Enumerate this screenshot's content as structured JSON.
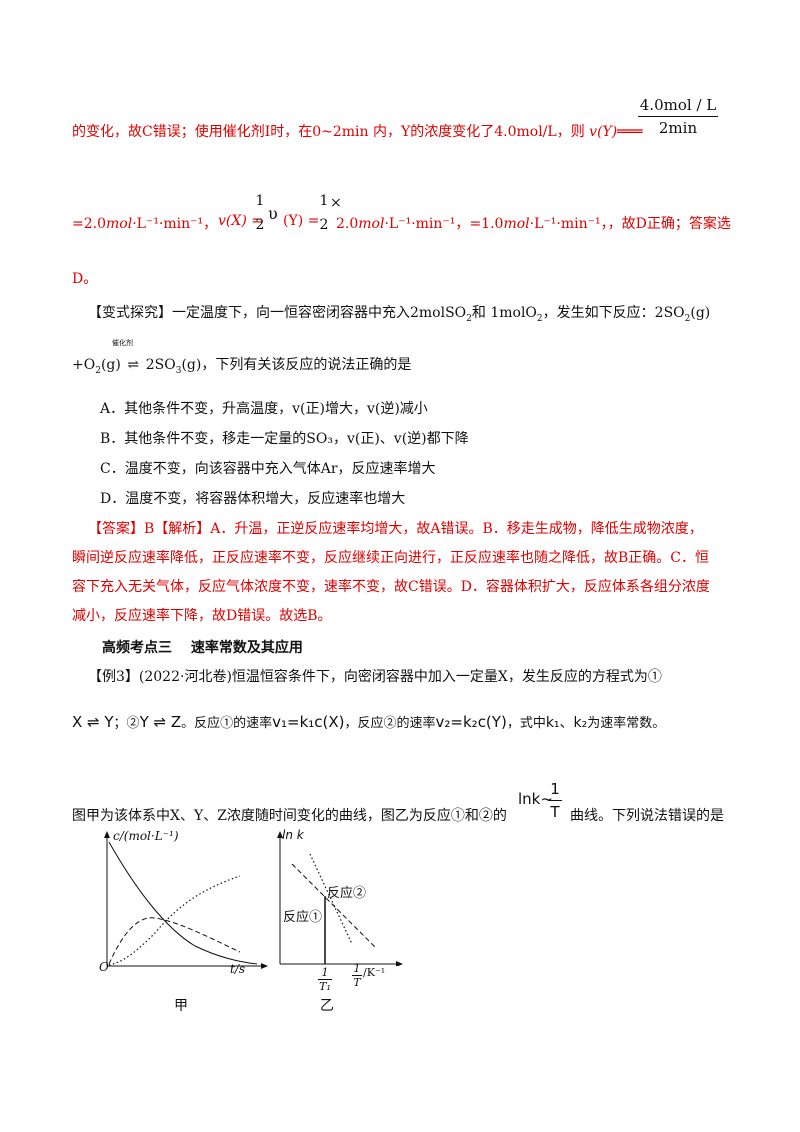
{
  "line1": {
    "text": "的变化，故C错误；使用催化剂I时，在0~2min 内，Y的浓度变化了4.0mol/L，则 ",
    "v_expr": "v(Y)═══",
    "frac_num": "4.0mol / L",
    "frac_den": "2min"
  },
  "line2": {
    "part1": "=2.0",
    "mol": "mol",
    "unit": "·L⁻¹·min⁻¹，",
    "vx": "v(X) = ",
    "half_num": "1",
    "half_den": "2",
    "upsilon": "υ",
    "vy_tail": "(Y) = ",
    "times": "×",
    "part2": "2.0",
    "part3": "=1.0",
    "tail": "，故D正确；答案选"
  },
  "line3": "D。",
  "bianshi": {
    "label": "【变式探究】一定温度下，向一恒容密闭容器中充入2molSO",
    "sub2": "2",
    "mid": "和 1molO",
    "mid2": "，发生如下反应：2SO",
    "eq_tail": "(g)",
    "line2_a": "+O",
    "line2_b": "(g) ",
    "catalyst": "催化剂",
    "line2_c": " 2SO",
    "sub3": "3",
    "line2_d": "(g)，下列有关该反应的说法正确的是"
  },
  "options": [
    "A．其他条件不变，升高温度，v(正)增大，v(逆)减小",
    "B．其他条件不变，移走一定量的SO₃，v(正)、v(逆)都下降",
    "C．温度不变，向该容器中充入气体Ar，反应速率增大",
    "D．温度不变，将容器体积增大，反应速率也增大"
  ],
  "answer": [
    "【答案】B【解析】A．升温，正逆反应速率均增大，故A错误。B．移走生成物，降低生成物浓度，",
    "瞬间逆反应速率降低，正反应速率不变，反应继续正向进行，正反应速率也随之降低，故B正确。C．恒",
    "容下充入无关气体，反应气体浓度不变，速率不变，故C错误。D．容器体积扩大，反应体系各组分浓度",
    "减小，反应速率下降，故D错误。故选B。"
  ],
  "section_title": "高频考点三　 速率常数及其应用",
  "example": {
    "line1": "【例3】(2022·河北卷)恒温恒容条件下，向密闭容器中加入一定量X，发生反应的方程式为①",
    "eq1": "X ⇌ Y",
    "sep": "；②",
    "eq2": "Y ⇌ Z",
    "rate1_pre": "。反应①的速率",
    "rate1": "v₁=k₁c(X)",
    "rate2_pre": "，反应②的速率",
    "rate2": "v₂=k₂c(Y)",
    "where": "，式中",
    "ks": "k₁、k₂",
    "const": "为速率常数。",
    "line3a": "图甲为该体系中X、Y、Z浓度随时间变化的曲线，图乙为反应①和②的",
    "lnk": "lnk~",
    "one": "1",
    "T": "T",
    "line3b": "曲线。下列说法错误的是"
  },
  "figure_a": {
    "ylabel": "c/(mol·L⁻¹)",
    "origin": "O",
    "xlabel": "t/s",
    "caption": "甲"
  },
  "figure_b": {
    "ylabel": "ln k",
    "label1": "反应①",
    "label2": "反应②",
    "tick1_num": "1",
    "tick1_den": "T₁",
    "tick2_num": "1",
    "tick2_den": "T",
    "tick2_unit": "/K⁻¹",
    "caption": "乙"
  },
  "colors": {
    "red": "#e00000",
    "black": "#111111"
  }
}
